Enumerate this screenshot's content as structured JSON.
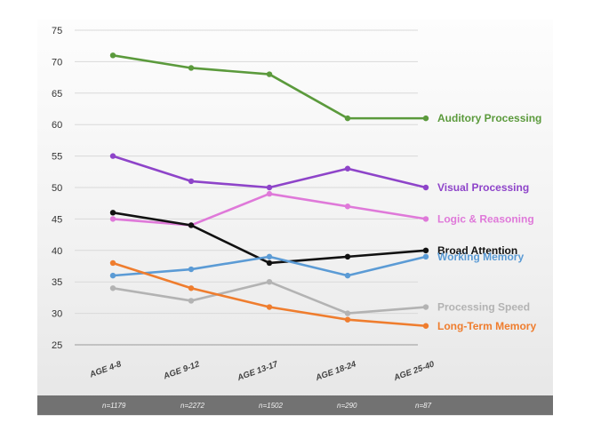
{
  "chart_data": {
    "type": "line",
    "title": "",
    "xlabel": "",
    "ylabel": "",
    "ylim": [
      25,
      75
    ],
    "yticks": [
      75,
      70,
      65,
      60,
      55,
      50,
      45,
      40,
      35,
      30,
      25
    ],
    "categories": [
      "AGE 4-8",
      "AGE 9-12",
      "AGE 13-17",
      "AGE 18-24",
      "AGE 25-40"
    ],
    "sample_sizes": [
      "n=1179",
      "n=2272",
      "n=1502",
      "n=290",
      "n=87"
    ],
    "grid": true,
    "series": [
      {
        "name": "Auditory Processing",
        "color": "#5b9a3c",
        "values": [
          71,
          69,
          68,
          61,
          61
        ]
      },
      {
        "name": "Visual Processing",
        "color": "#8e44c9",
        "values": [
          55,
          51,
          50,
          53,
          50
        ]
      },
      {
        "name": "Logic & Reasoning",
        "color": "#df79d9",
        "values": [
          45,
          44,
          49,
          47,
          45
        ]
      },
      {
        "name": "Broad Attention",
        "color": "#111111",
        "values": [
          46,
          44,
          38,
          39,
          40
        ]
      },
      {
        "name": "Working Memory",
        "color": "#5b9bd5",
        "values": [
          36,
          37,
          39,
          36,
          39
        ]
      },
      {
        "name": "Processing Speed",
        "color": "#b3b3b3",
        "values": [
          34,
          32,
          35,
          30,
          31
        ]
      },
      {
        "name": "Long-Term Memory",
        "color": "#ef7d2e",
        "values": [
          38,
          34,
          31,
          29,
          28
        ]
      }
    ]
  }
}
